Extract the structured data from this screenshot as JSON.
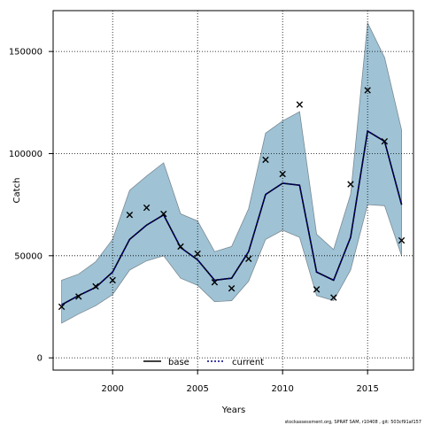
{
  "chart_data": {
    "type": "line",
    "title": "",
    "xlabel": "Years",
    "ylabel": "Catch",
    "xlim": [
      1996.5,
      2017.7
    ],
    "ylim": [
      -6000,
      170000
    ],
    "x_ticks": [
      2000,
      2005,
      2010,
      2015
    ],
    "y_ticks": [
      0,
      50000,
      100000,
      150000
    ],
    "x_tick_labels": [
      "2000",
      "2005",
      "2010",
      "2015"
    ],
    "y_tick_labels": [
      "0",
      "50000",
      "100000",
      "150000"
    ],
    "grid": true,
    "legend_position": "bottom-center",
    "legend": [
      {
        "label": "base",
        "style": "solid"
      },
      {
        "label": "current",
        "style": "dotted"
      }
    ],
    "years": [
      1997,
      1998,
      1999,
      2000,
      2001,
      2002,
      2003,
      2004,
      2005,
      2006,
      2007,
      2008,
      2009,
      2010,
      2011,
      2012,
      2013,
      2014,
      2015,
      2016,
      2017
    ],
    "observed": [
      25000,
      30000,
      35000,
      38000,
      70000,
      73500,
      70500,
      54500,
      51000,
      37000,
      34000,
      48500,
      97000,
      90000,
      124000,
      33500,
      29500,
      85000,
      131000,
      106000,
      57500
    ],
    "current_estimate": [
      26000,
      30500,
      34500,
      42000,
      58000,
      65000,
      70000,
      54000,
      48000,
      38000,
      39000,
      52000,
      80000,
      85500,
      84500,
      42000,
      38000,
      59000,
      111000,
      106000,
      75000
    ],
    "ci_upper": [
      38000,
      41000,
      47000,
      58000,
      82000,
      89000,
      95500,
      70500,
      67000,
      52000,
      54500,
      73000,
      110000,
      116000,
      120500,
      60500,
      53000,
      80000,
      164000,
      147000,
      111500
    ],
    "ci_lower": [
      17000,
      21500,
      25500,
      31000,
      43000,
      47500,
      50000,
      39000,
      35500,
      27500,
      28000,
      37500,
      58000,
      62500,
      59000,
      30500,
      28000,
      43000,
      75000,
      74500,
      50000
    ],
    "colors": {
      "band_fill": "#9fc3d5",
      "band_stroke": "#7a8a94",
      "line": "#000000",
      "current_line": "#000080",
      "grid": "#000000"
    }
  },
  "footer": {
    "text": "stockassessment.org, SPRAT SAM, r10408 , git: 503cf91af157"
  }
}
